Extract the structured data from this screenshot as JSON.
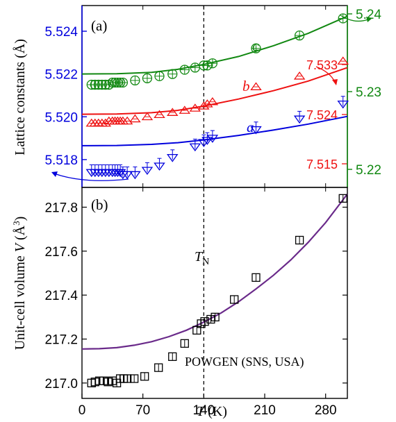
{
  "colors": {
    "a": "#0000dd",
    "b": "#ee1111",
    "c": "#118811",
    "volume": "#6a2a8a",
    "axis": "#000000"
  },
  "chart_data": [
    {
      "type": "scatter",
      "panel_label": "(a)",
      "ylabel": "Lattice constants (Å)",
      "xlim": [
        0,
        305
      ],
      "ylim_left": [
        5.5167,
        5.5252
      ],
      "left_ticks": [
        "5.518",
        "5.520",
        "5.522",
        "5.524"
      ],
      "right_inner_ticks": [
        "7.515",
        "7.524",
        "7.533"
      ],
      "right_outer_ticks": [
        "5.22",
        "5.23",
        "5.24"
      ],
      "vline_x": 140,
      "series": [
        {
          "name": "a",
          "marker": "triangle-down",
          "x": [
            11,
            15,
            19,
            23,
            27,
            31,
            35,
            38,
            41,
            44,
            47,
            52,
            61,
            75,
            89,
            104,
            130,
            140,
            144,
            150,
            200,
            250,
            300
          ],
          "y": [
            5.5174,
            5.5174,
            5.5174,
            5.5174,
            5.5174,
            5.5174,
            5.5174,
            5.5174,
            5.5174,
            5.5174,
            5.5173,
            5.5173,
            5.5173,
            5.5175,
            5.5177,
            5.5181,
            5.5186,
            5.5188,
            5.5189,
            5.519,
            5.5194,
            5.5199,
            5.5206
          ],
          "fit_x": [
            0,
            40,
            80,
            110,
            140,
            180,
            220,
            260,
            305
          ],
          "fit_y": [
            5.51865,
            5.51866,
            5.51871,
            5.51879,
            5.51892,
            5.51913,
            5.51938,
            5.51966,
            5.52002
          ]
        },
        {
          "name": "b",
          "marker": "triangle-up",
          "x": [
            11,
            15,
            19,
            23,
            27,
            31,
            35,
            38,
            41,
            44,
            47,
            52,
            61,
            75,
            89,
            104,
            118,
            130,
            140,
            144,
            150,
            200,
            250,
            300
          ],
          "y": [
            5.5197,
            5.5197,
            5.5197,
            5.5197,
            5.5197,
            5.5198,
            5.5198,
            5.5198,
            5.5198,
            5.5198,
            5.5198,
            5.5198,
            5.5199,
            5.52,
            5.5201,
            5.5202,
            5.5203,
            5.5204,
            5.5205,
            5.5206,
            5.5207,
            5.5214,
            5.5219,
            5.5226
          ],
          "fit_x": [
            0,
            40,
            80,
            110,
            140,
            180,
            220,
            260,
            305
          ],
          "fit_y": [
            5.52012,
            5.52013,
            5.52019,
            5.5203,
            5.5205,
            5.52083,
            5.52122,
            5.52167,
            5.5223
          ]
        },
        {
          "name": "c",
          "marker": "circle-plus",
          "x": [
            11,
            15,
            19,
            23,
            27,
            31,
            35,
            38,
            41,
            44,
            47,
            61,
            75,
            89,
            104,
            118,
            130,
            140,
            144,
            150,
            200,
            250,
            300
          ],
          "y": [
            5.5215,
            5.5215,
            5.5215,
            5.5215,
            5.5215,
            5.5215,
            5.5216,
            5.5216,
            5.5216,
            5.5216,
            5.5216,
            5.5217,
            5.5218,
            5.5219,
            5.522,
            5.5222,
            5.5223,
            5.5224,
            5.5224,
            5.5225,
            5.5232,
            5.5238,
            5.5246
          ],
          "fit_x": [
            0,
            40,
            80,
            110,
            140,
            180,
            220,
            260,
            305
          ],
          "fit_y": [
            5.522,
            5.52201,
            5.52208,
            5.52222,
            5.52245,
            5.52282,
            5.52332,
            5.5239,
            5.5247
          ]
        }
      ]
    },
    {
      "type": "scatter",
      "panel_label": "(b)",
      "ylabel": "Unit-cell volume V (Å³)",
      "xlabel": "T (K)",
      "xlim": [
        0,
        305
      ],
      "ylim": [
        216.93,
        217.89
      ],
      "xticks": [
        0,
        70,
        140,
        210,
        280
      ],
      "yticks": [
        217.0,
        217.2,
        217.4,
        217.6,
        217.8
      ],
      "vline_x": 140,
      "vline_label": "T",
      "vline_label_sub": "N",
      "annotation": "POWGEN (SNS, USA)",
      "series": [
        {
          "name": "V",
          "marker": "square",
          "x": [
            11,
            15,
            20,
            25,
            30,
            35,
            40,
            44,
            48,
            52,
            60,
            72,
            88,
            104,
            118,
            132,
            137,
            141,
            148,
            153,
            175,
            200,
            250,
            300
          ],
          "y": [
            217.0,
            217.005,
            217.01,
            217.01,
            217.005,
            217.01,
            217.0,
            217.02,
            217.02,
            217.02,
            217.02,
            217.03,
            217.07,
            217.12,
            217.18,
            217.24,
            217.27,
            217.28,
            217.29,
            217.3,
            217.38,
            217.48,
            217.65,
            217.84
          ],
          "fit_x": [
            0,
            20,
            40,
            60,
            80,
            100,
            120,
            140,
            160,
            180,
            200,
            220,
            240,
            260,
            280,
            305
          ],
          "fit_y": [
            217.155,
            217.156,
            217.161,
            217.172,
            217.188,
            217.211,
            217.24,
            217.277,
            217.319,
            217.37,
            217.428,
            217.49,
            217.56,
            217.64,
            217.73,
            217.86
          ]
        }
      ]
    }
  ]
}
